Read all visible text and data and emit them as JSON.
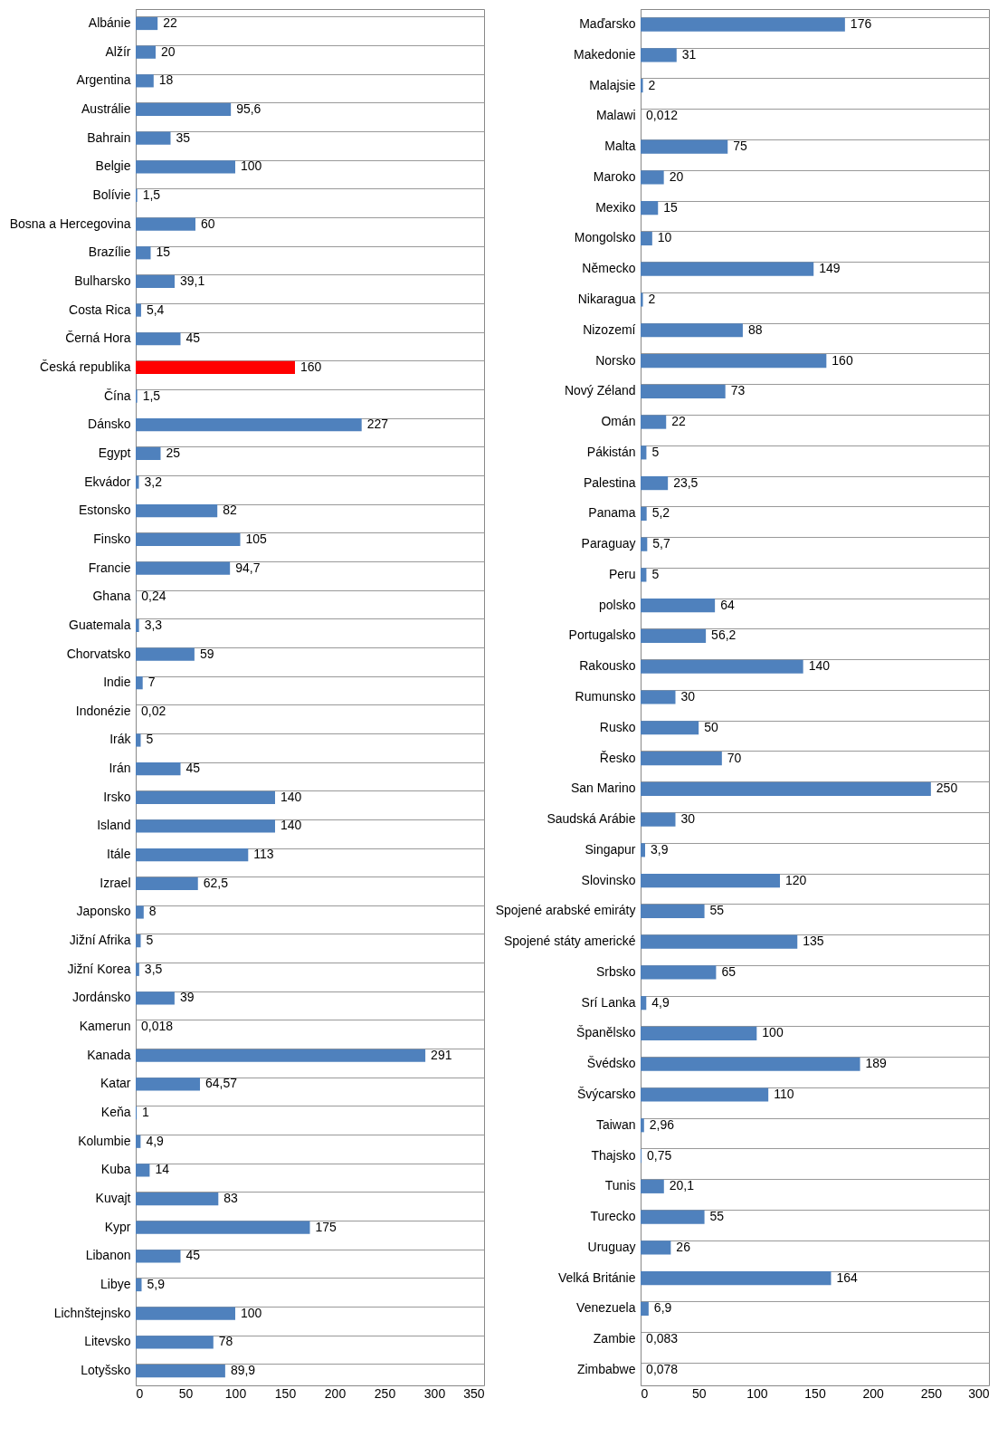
{
  "chart_data": [
    {
      "type": "bar",
      "orientation": "horizontal",
      "grid": "y",
      "categories": [
        "Albánie",
        "Alžír",
        "Argentina",
        "Austrálie",
        "Bahrain",
        "Belgie",
        "Bolívie",
        "Bosna a Hercegovina",
        "Brazílie",
        "Bulharsko",
        "Costa Rica",
        "Černá Hora",
        "Česká republika",
        "Čína",
        "Dánsko",
        "Egypt",
        "Ekvádor",
        "Estonsko",
        "Finsko",
        "Francie",
        "Ghana",
        "Guatemala",
        "Chorvatsko",
        "Indie",
        "Indonézie",
        "Irák",
        "Irán",
        "Irsko",
        "Island",
        "Itále",
        "Izrael",
        "Japonsko",
        "Jižní Afrika",
        "Jižní Korea",
        "Jordánsko",
        "Kamerun",
        "Kanada",
        "Katar",
        "Keňa",
        "Kolumbie",
        "Kuba",
        "Kuvajt",
        "Kypr",
        "Libanon",
        "Libye",
        "Lichnštejnsko",
        "Litevsko",
        "Lotyšsko"
      ],
      "values": [
        22,
        20,
        18,
        95.6,
        35,
        100,
        1.5,
        60,
        15,
        39.1,
        5.4,
        45,
        160,
        1.5,
        227,
        25,
        3.2,
        82,
        105,
        94.7,
        0.24,
        3.3,
        59,
        7,
        0.02,
        5,
        45,
        140,
        140,
        113,
        62.5,
        8,
        5,
        3.5,
        39,
        0.018,
        291,
        64.57,
        1,
        4.9,
        14,
        83,
        175,
        45,
        5.9,
        100,
        78,
        89.9
      ],
      "value_labels": [
        "22",
        "20",
        "18",
        "95,6",
        "35",
        "100",
        "1,5",
        "60",
        "15",
        "39,1",
        "5,4",
        "45",
        "160",
        "1,5",
        "227",
        "25",
        "3,2",
        "82",
        "105",
        "94,7",
        "0,24",
        "3,3",
        "59",
        "7",
        "0,02",
        "5",
        "45",
        "140",
        "140",
        "113",
        "62,5",
        "8",
        "5",
        "3,5",
        "39",
        "0,018",
        "291",
        "64,57",
        "1",
        "4,9",
        "14",
        "83",
        "175",
        "45",
        "5,9",
        "100",
        "78",
        "89,9"
      ],
      "colors": [
        "#4f81bd",
        "#4f81bd",
        "#4f81bd",
        "#4f81bd",
        "#4f81bd",
        "#4f81bd",
        "#4f81bd",
        "#4f81bd",
        "#4f81bd",
        "#4f81bd",
        "#4f81bd",
        "#4f81bd",
        "#ff0000",
        "#4f81bd",
        "#4f81bd",
        "#4f81bd",
        "#4f81bd",
        "#4f81bd",
        "#4f81bd",
        "#4f81bd",
        "#4f81bd",
        "#4f81bd",
        "#4f81bd",
        "#4f81bd",
        "#4f81bd",
        "#4f81bd",
        "#4f81bd",
        "#4f81bd",
        "#4f81bd",
        "#4f81bd",
        "#4f81bd",
        "#4f81bd",
        "#4f81bd",
        "#4f81bd",
        "#4f81bd",
        "#4f81bd",
        "#4f81bd",
        "#4f81bd",
        "#4f81bd",
        "#4f81bd",
        "#4f81bd",
        "#4f81bd",
        "#4f81bd",
        "#4f81bd",
        "#4f81bd",
        "#4f81bd",
        "#4f81bd",
        "#4f81bd"
      ],
      "xlim": [
        0,
        350
      ],
      "xticks": [
        0,
        50,
        100,
        150,
        200,
        250,
        300,
        350
      ]
    },
    {
      "type": "bar",
      "orientation": "horizontal",
      "grid": "y",
      "categories": [
        "Maďarsko",
        "Makedonie",
        "Malajsie",
        "Malawi",
        "Malta",
        "Maroko",
        "Mexiko",
        "Mongolsko",
        "Německo",
        "Nikaragua",
        "Nizozemí",
        "Norsko",
        "Nový Zéland",
        "Omán",
        "Pákistán",
        "Palestina",
        "Panama",
        "Paraguay",
        "Peru",
        "polsko",
        "Portugalsko",
        "Rakousko",
        "Rumunsko",
        "Rusko",
        "Řesko",
        "San Marino",
        "Saudská Arábie",
        "Singapur",
        "Slovinsko",
        "Spojené arabské emiráty",
        "Spojené státy americké",
        "Srbsko",
        "Srí Lanka",
        "Španělsko",
        "Švédsko",
        "Švýcarsko",
        "Taiwan",
        "Thajsko",
        "Tunis",
        "Turecko",
        "Uruguay",
        "Velká Británie",
        "Venezuela",
        "Zambie",
        "Zimbabwe"
      ],
      "values": [
        176,
        31,
        2,
        0.012,
        75,
        20,
        15,
        10,
        149,
        2,
        88,
        160,
        73,
        22,
        5,
        23.5,
        5.2,
        5.7,
        5,
        64,
        56.2,
        140,
        30,
        50,
        70,
        250,
        30,
        3.9,
        120,
        55,
        135,
        65,
        4.9,
        100,
        189,
        110,
        2.96,
        0.75,
        20.1,
        55,
        26,
        164,
        6.9,
        0.083,
        0.078
      ],
      "value_labels": [
        "176",
        "31",
        "2",
        "0,012",
        "75",
        "20",
        "15",
        "10",
        "149",
        "2",
        "88",
        "160",
        "73",
        "22",
        "5",
        "23,5",
        "5,2",
        "5,7",
        "5",
        "64",
        "56,2",
        "140",
        "30",
        "50",
        "70",
        "250",
        "30",
        "3,9",
        "120",
        "55",
        "135",
        "65",
        "4,9",
        "100",
        "189",
        "110",
        "2,96",
        "0,75",
        "20,1",
        "55",
        "26",
        "164",
        "6,9",
        "0,083",
        "0,078"
      ],
      "color": "#4f81bd",
      "xlim": [
        0,
        300
      ],
      "xticks": [
        0,
        50,
        100,
        150,
        200,
        250,
        300
      ]
    }
  ]
}
